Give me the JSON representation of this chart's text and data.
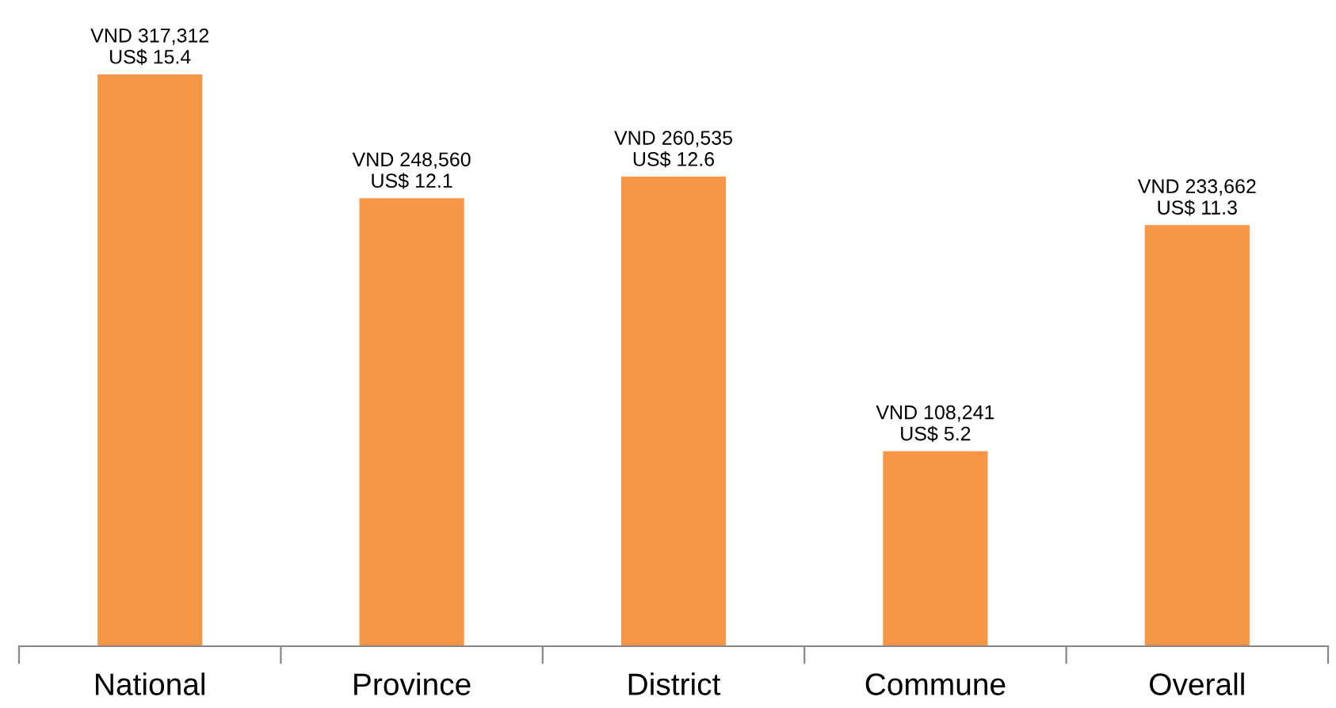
{
  "chart_data": {
    "type": "bar",
    "categories": [
      "National",
      "Province",
      "District",
      "Commune",
      "Overall"
    ],
    "values": [
      317312,
      248560,
      260535,
      108241,
      233662
    ],
    "value_labels": [
      "VND 317,312\nUS$ 15.4",
      "VND 248,560\nUS$ 12.1",
      "VND 260,535\nUS$ 12.6",
      "VND 108,241\nUS$ 5.2",
      "VND 233,662\nUS$ 11.3"
    ],
    "color": "#f79646",
    "grid": false,
    "legend": false
  }
}
